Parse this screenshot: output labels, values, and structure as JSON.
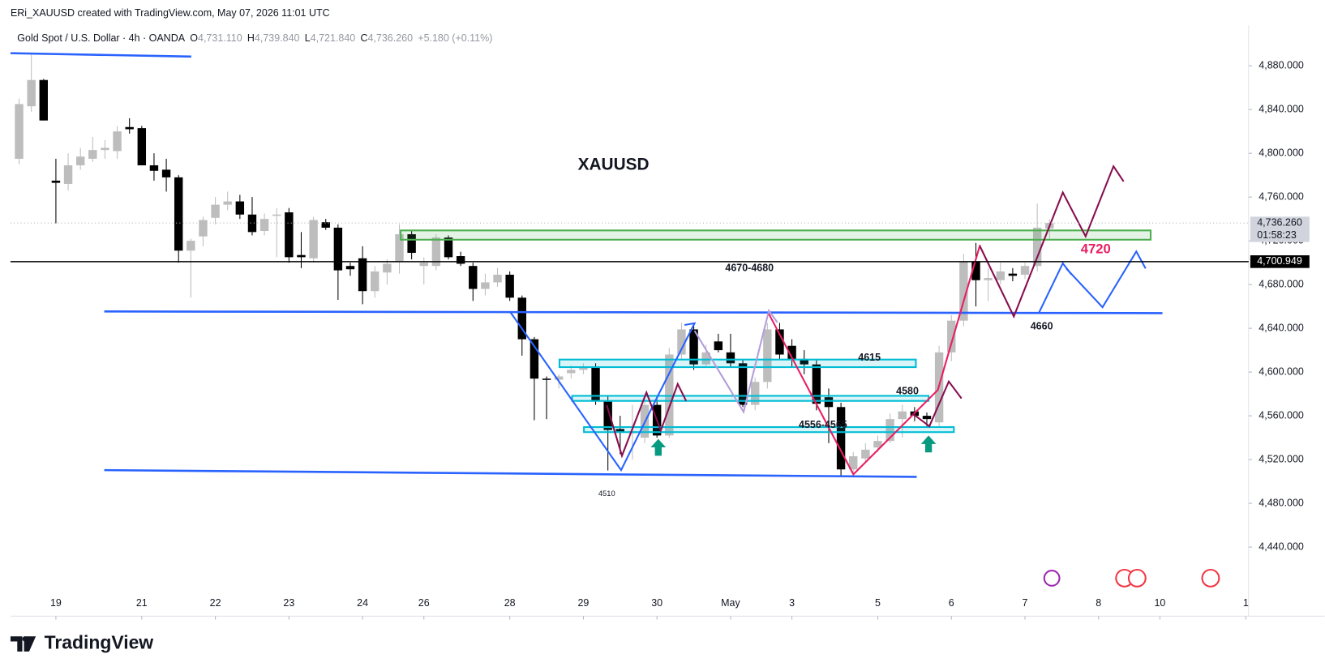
{
  "chart_data": {
    "type": "candlestick",
    "watermark": "ERi_XAUUSD created with TradingView.com, May 07, 2026 11:01 UTC",
    "symbol": "Gold Spot / U.S. Dollar · 4h · OANDA",
    "ohlc": [
      {
        "key": "O",
        "value": "4,731.110"
      },
      {
        "key": "H",
        "value": "4,739.840"
      },
      {
        "key": "L",
        "value": "4,721.840"
      },
      {
        "key": "C",
        "value": "4,736.260"
      }
    ],
    "change": "+5.180 (+0.11%)",
    "title": "XAUUSD",
    "annotations": [
      "4670-4680",
      "4615",
      "4580",
      "4556-4565",
      "4510",
      "4660",
      "4720"
    ],
    "brand": "TradingView",
    "up_color": "#bdbdbd",
    "down_color": "#000000",
    "x": [
      -3,
      -2,
      -1,
      0,
      1,
      2,
      3,
      4,
      5,
      6,
      7,
      8,
      9,
      10,
      11,
      12,
      13,
      14,
      15,
      16,
      17,
      18,
      19,
      20,
      21,
      22,
      23,
      24,
      25,
      26,
      27,
      28,
      29,
      30,
      31,
      32,
      33,
      34,
      35,
      36,
      37,
      38,
      39,
      40,
      41,
      42,
      43,
      44,
      45,
      46,
      47,
      48,
      49,
      50,
      51,
      52,
      53,
      54,
      55,
      56,
      57,
      58,
      59,
      60,
      61,
      62,
      63,
      64,
      65,
      66,
      67,
      68,
      69,
      70,
      71,
      72,
      73,
      74,
      75,
      76,
      77,
      78,
      79,
      80,
      81
    ],
    "open": [
      4795,
      4843,
      4867,
      4775,
      4772,
      4789,
      4795,
      4803,
      4802,
      4824,
      4823,
      4789,
      4785,
      4778,
      4711,
      4724,
      4741,
      4753,
      4756,
      4744,
      4729,
      4743,
      4746,
      4707,
      4704,
      4737,
      4732,
      4697,
      4704,
      4674,
      4691,
      4701,
      4726,
      4697,
      4697,
      4723,
      4706,
      4697,
      4676,
      4682,
      4689,
      4668,
      4630,
      4594,
      4593,
      4599,
      4602,
      4605,
      4574,
      4548,
      4544,
      4540,
      4570,
      4542,
      4616,
      4639,
      4607,
      4628,
      4618,
      4608,
      4570,
      4591,
      4639,
      4624,
      4612,
      4607,
      4577,
      4568,
      4511,
      4521,
      4531,
      4537,
      4557,
      4564,
      4560,
      4554,
      4618,
      4647,
      4701,
      4684,
      4684,
      4690,
      4689,
      4697,
      4731.11
    ],
    "high": [
      4850,
      4890,
      4868,
      4795,
      4800,
      4805,
      4815,
      4812,
      4825,
      4832,
      4825,
      4800,
      4795,
      4780,
      4722,
      4742,
      4760,
      4765,
      4762,
      4760,
      4745,
      4750,
      4750,
      4728,
      4742,
      4740,
      4735,
      4700,
      4715,
      4697,
      4703,
      4735,
      4730,
      4705,
      4726,
      4725,
      4710,
      4700,
      4690,
      4695,
      4692,
      4670,
      4632,
      4596,
      4598,
      4606,
      4608,
      4608,
      4578,
      4560,
      4570,
      4575,
      4575,
      4622,
      4645,
      4645,
      4625,
      4635,
      4635,
      4612,
      4595,
      4645,
      4645,
      4630,
      4620,
      4612,
      4585,
      4572,
      4527,
      4535,
      4542,
      4562,
      4570,
      4568,
      4563,
      4624,
      4652,
      4708,
      4718,
      4695,
      4700,
      4695,
      4700,
      4754,
      4739.84
    ],
    "low": [
      4790,
      4838,
      4830,
      4736,
      4766,
      4785,
      4792,
      4795,
      4795,
      4818,
      4789,
      4775,
      4765,
      4700,
      4668,
      4715,
      4735,
      4748,
      4740,
      4725,
      4725,
      4705,
      4700,
      4695,
      4700,
      4730,
      4666,
      4688,
      4662,
      4668,
      4680,
      4690,
      4703,
      4680,
      4693,
      4703,
      4697,
      4665,
      4670,
      4678,
      4665,
      4615,
      4556,
      4557,
      4585,
      4594,
      4598,
      4570,
      4510,
      4525,
      4520,
      4535,
      4540,
      4540,
      4612,
      4602,
      4605,
      4618,
      4605,
      4568,
      4565,
      4585,
      4612,
      4605,
      4598,
      4565,
      4535,
      4505,
      4506,
      4517,
      4527,
      4535,
      4540,
      4555,
      4550,
      4550,
      4610,
      4642,
      4660,
      4665,
      4680,
      4683,
      4685,
      4692,
      4721.84
    ],
    "close": [
      4845,
      4867,
      4830,
      4773,
      4789,
      4797,
      4803,
      4805,
      4820,
      4822,
      4789,
      4784,
      4778,
      4711,
      4720,
      4739,
      4753,
      4756,
      4744,
      4728,
      4740,
      4744,
      4705,
      4705,
      4739,
      4732,
      4693,
      4694,
      4674,
      4692,
      4699,
      4726,
      4709,
      4700,
      4723,
      4705,
      4699,
      4676,
      4682,
      4689,
      4668,
      4630,
      4594,
      4593,
      4596,
      4602,
      4605,
      4574,
      4547,
      4545,
      4546,
      4570,
      4542,
      4616,
      4639,
      4607,
      4618,
      4620,
      4608,
      4570,
      4591,
      4639,
      4616,
      4612,
      4607,
      4571,
      4568,
      4511,
      4523,
      4529,
      4537,
      4557,
      4564,
      4560,
      4557,
      4618,
      4647,
      4701,
      4684,
      4686,
      4692,
      4688,
      4697,
      4732,
      4736.26
    ],
    "xlim": [
      -3.7,
      97.3
    ],
    "xticks": [
      {
        "value": 0,
        "label": "19"
      },
      {
        "value": 7,
        "label": "21"
      },
      {
        "value": 13,
        "label": "22"
      },
      {
        "value": 19,
        "label": "23"
      },
      {
        "value": 25,
        "label": "24"
      },
      {
        "value": 30,
        "label": "26"
      },
      {
        "value": 37,
        "label": "28"
      },
      {
        "value": 43,
        "label": "29"
      },
      {
        "value": 49,
        "label": "30"
      },
      {
        "value": 55,
        "label": "May"
      },
      {
        "value": 60,
        "label": "3"
      },
      {
        "value": 67,
        "label": "5"
      },
      {
        "value": 73,
        "label": "6"
      },
      {
        "value": 79,
        "label": "7"
      },
      {
        "value": 85,
        "label": "8"
      },
      {
        "value": 90,
        "label": "10"
      },
      {
        "value": 97,
        "label": "1"
      }
    ],
    "ylim": [
      4400,
      4917
    ],
    "yticks": [
      {
        "value": 4440,
        "label": "4,440.000"
      },
      {
        "value": 4480,
        "label": "4,480.000"
      },
      {
        "value": 4520,
        "label": "4,520.000"
      },
      {
        "value": 4560,
        "label": "4,560.000"
      },
      {
        "value": 4600,
        "label": "4,600.000"
      },
      {
        "value": 4640,
        "label": "4,640.000"
      },
      {
        "value": 4680,
        "label": "4,680.000"
      },
      {
        "value": 4720,
        "label": "4,720.000"
      },
      {
        "value": 4760,
        "label": "4,760.000"
      },
      {
        "value": 4800,
        "label": "4,800.000"
      },
      {
        "value": 4840,
        "label": "4,840.000"
      },
      {
        "value": 4880,
        "label": "4,880.000"
      }
    ],
    "grid": false,
    "price_tags": [
      {
        "value": 4736.26,
        "label": "4,736.260",
        "countdown": "01:58:23",
        "color": "#d1d4dc",
        "text_color": "#131722"
      },
      {
        "value": 4700.949,
        "label": "4,700.949",
        "color": "#000000",
        "text_color": "#ffffff"
      }
    ]
  }
}
